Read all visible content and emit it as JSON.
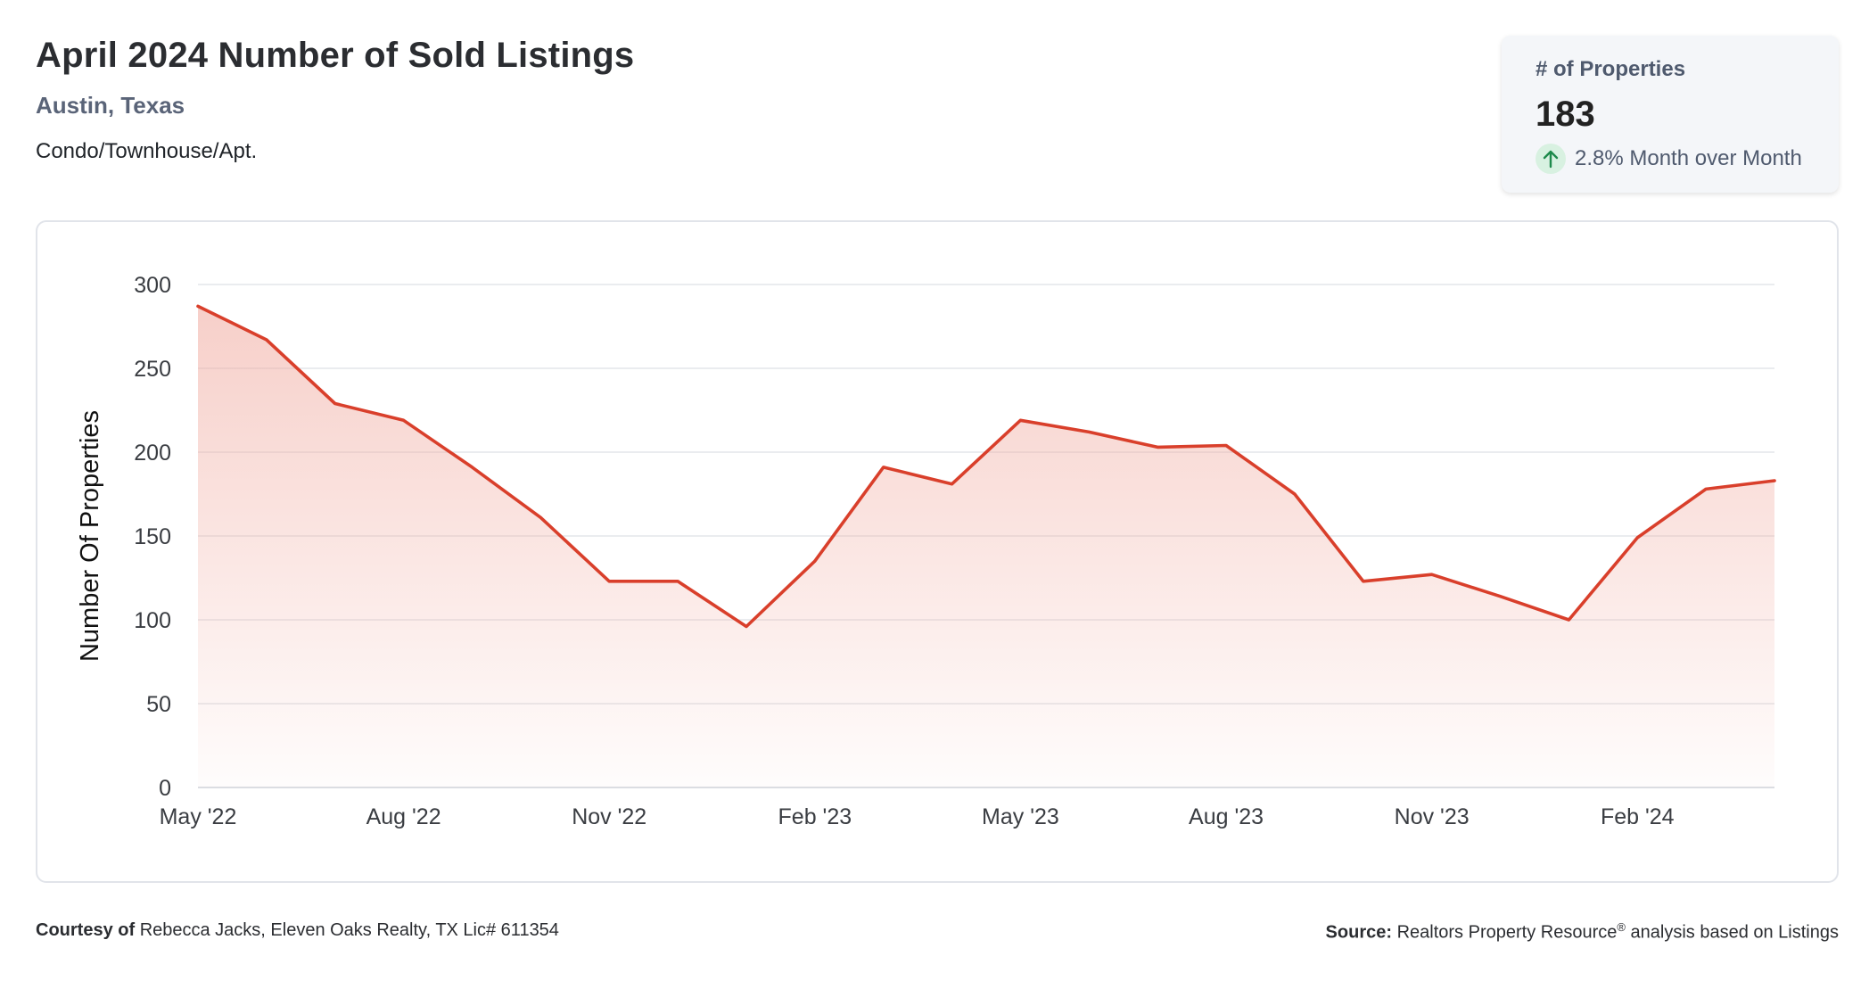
{
  "header": {
    "title": "April 2024 Number of Sold Listings",
    "location": "Austin, Texas",
    "property_type": "Condo/Townhouse/Apt."
  },
  "kpi": {
    "label": "# of Properties",
    "value": "183",
    "change": "2.8% Month over Month",
    "direction_icon": "arrow-up-icon",
    "positive_color": "#1e8a4c"
  },
  "chart_data": {
    "type": "area",
    "x": [
      "May '22",
      "Jun '22",
      "Jul '22",
      "Aug '22",
      "Sep '22",
      "Oct '22",
      "Nov '22",
      "Dec '22",
      "Jan '23",
      "Feb '23",
      "Mar '23",
      "Apr '23",
      "May '23",
      "Jun '23",
      "Jul '23",
      "Aug '23",
      "Sep '23",
      "Oct '23",
      "Nov '23",
      "Dec '23",
      "Jan '24",
      "Feb '24",
      "Mar '24",
      "Apr '24"
    ],
    "series": [
      {
        "values": [
          287,
          267,
          229,
          219,
          191,
          161,
          123,
          123,
          96,
          135,
          191,
          181,
          219,
          212,
          203,
          204,
          175,
          123,
          127,
          114,
          100,
          149,
          178,
          183
        ]
      }
    ],
    "xticks": [
      "May '22",
      "Aug '22",
      "Nov '22",
      "Feb '23",
      "May '23",
      "Aug '23",
      "Nov '23",
      "Feb '24"
    ],
    "yticks": [
      0,
      50,
      100,
      150,
      200,
      250,
      300
    ],
    "ylabel": "Number Of Properties",
    "xlabel": "",
    "ylim": [
      0,
      300
    ],
    "grid": true,
    "line_color": "#d93f2b",
    "fill_color": "#f0a89d"
  },
  "footer": {
    "courtesy_label": "Courtesy of",
    "courtesy_text": "Rebecca Jacks, Eleven Oaks Realty, TX Lic# 611354",
    "source_label": "Source:",
    "source_text_pre": "Realtors Property Resource",
    "source_sup": "®",
    "source_text_post": " analysis based on Listings"
  }
}
